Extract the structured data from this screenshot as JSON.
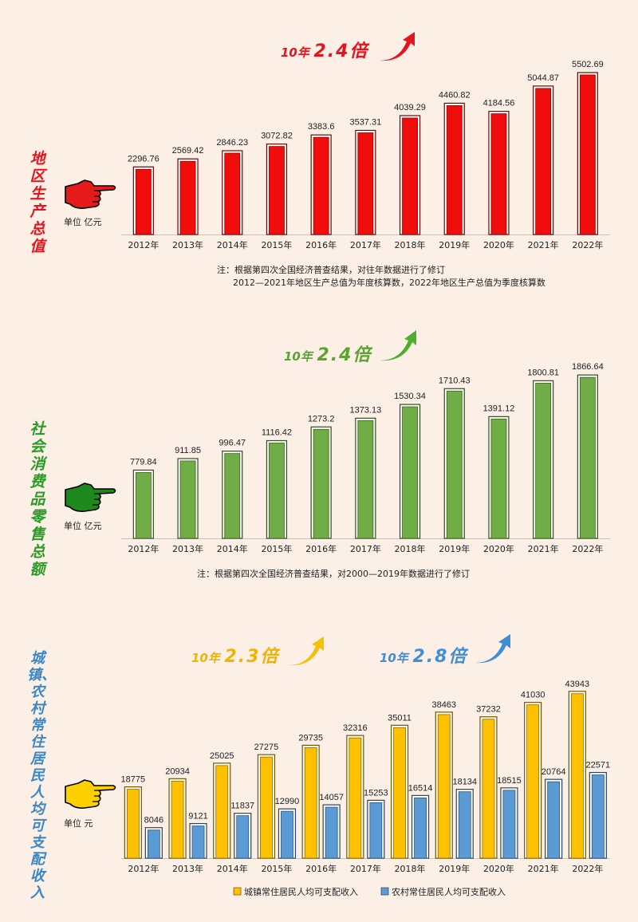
{
  "colors": {
    "background": "#fbefe6",
    "gdp_bar": "#f20d0d",
    "gdp_title": "#e6141c",
    "retail_bar": "#70ad47",
    "retail_title": "#2c9a27",
    "urban_bar": "#ffc000",
    "rural_bar": "#5b9bd5",
    "income_title": "#3a87c8"
  },
  "icons": {
    "gdp_hand": "pointing-hand-icon",
    "retail_hand": "pointing-hand-icon",
    "income_hand": "pointing-hand-icon",
    "gdp_arrow": "up-arrow-icon",
    "retail_arrow": "up-arrow-icon",
    "income_arrows": "up-arrow-icon"
  },
  "gdp": {
    "title": "地区生产总值",
    "unit": "单位 亿元",
    "headline_years": "10年",
    "headline_ratio": "2.4倍",
    "note_line1": "注：根据第四次全国经济普查结果，对往年数据进行了修订",
    "note_line2": "2012—2021年地区生产总值为年度核算数，2022年地区生产总值为季度核算数"
  },
  "retail": {
    "title": "社会消费品零售总额",
    "unit": "单位 亿元",
    "headline_years": "10年",
    "headline_ratio": "2.4倍",
    "note": "注：根据第四次全国经济普查结果，对2000—2019年数据进行了修订"
  },
  "income": {
    "title": "城镇、农村常住居民人均可支配收入",
    "unit": "单位 元",
    "headline1_years": "10年",
    "headline1_ratio": "2.3倍",
    "headline2_years": "10年",
    "headline2_ratio": "2.8倍"
  },
  "chart_data": [
    {
      "type": "bar",
      "categories": [
        "2012年",
        "2013年",
        "2014年",
        "2015年",
        "2016年",
        "2017年",
        "2018年",
        "2019年",
        "2020年",
        "2021年",
        "2022年"
      ],
      "values": [
        2296.76,
        2569.42,
        2846.23,
        3072.82,
        3383.6,
        3537.31,
        4039.29,
        4460.82,
        4184.56,
        5044.87,
        5502.69
      ],
      "value_labels": [
        "2296.76",
        "2569.42",
        "2846.23",
        "3072.82",
        "3383.6",
        "3537.31",
        "4039.29",
        "4460.82",
        "4184.56",
        "5044.87",
        "5502.69"
      ],
      "title": "地区生产总值",
      "ylabel": "单位 亿元",
      "ylim": [
        0,
        5800
      ],
      "grid": false
    },
    {
      "type": "bar",
      "categories": [
        "2012年",
        "2013年",
        "2014年",
        "2015年",
        "2016年",
        "2017年",
        "2018年",
        "2019年",
        "2020年",
        "2021年",
        "2022年"
      ],
      "values": [
        779.84,
        911.85,
        996.47,
        1116.42,
        1273.2,
        1373.13,
        1530.34,
        1710.43,
        1391.12,
        1800.81,
        1866.64
      ],
      "value_labels": [
        "779.84",
        "911.85",
        "996.47",
        "1116.42",
        "1273.2",
        "1373.13",
        "1530.34",
        "1710.43",
        "1391.12",
        "1800.81",
        "1866.64"
      ],
      "title": "社会消费品零售总额",
      "ylabel": "单位 亿元",
      "ylim": [
        0,
        1950
      ],
      "grid": false
    },
    {
      "type": "bar",
      "categories": [
        "2012年",
        "2013年",
        "2014年",
        "2015年",
        "2016年",
        "2017年",
        "2018年",
        "2019年",
        "2020年",
        "2021年",
        "2022年"
      ],
      "series": [
        {
          "name": "城镇常住居民人均可支配收入",
          "values": [
            18775,
            20934,
            25025,
            27275,
            29735,
            32316,
            35011,
            38463,
            37232,
            41030,
            43943
          ],
          "value_labels": [
            "18775",
            "20934",
            "25025",
            "27275",
            "29735",
            "32316",
            "35011",
            "38463",
            "37232",
            "41030",
            "43943"
          ]
        },
        {
          "name": "农村常住居民人均可支配收入",
          "values": [
            8046,
            9121,
            11837,
            12990,
            14057,
            15253,
            16514,
            18134,
            18515,
            20764,
            22571
          ],
          "value_labels": [
            "8046",
            "9121",
            "11837",
            "12990",
            "14057",
            "15253",
            "16514",
            "18134",
            "18515",
            "20764",
            "22571"
          ]
        }
      ],
      "title": "城镇、农村常住居民人均可支配收入",
      "ylabel": "单位 元",
      "ylim": [
        0,
        46000
      ],
      "legend": "bottom",
      "grid": false
    }
  ]
}
